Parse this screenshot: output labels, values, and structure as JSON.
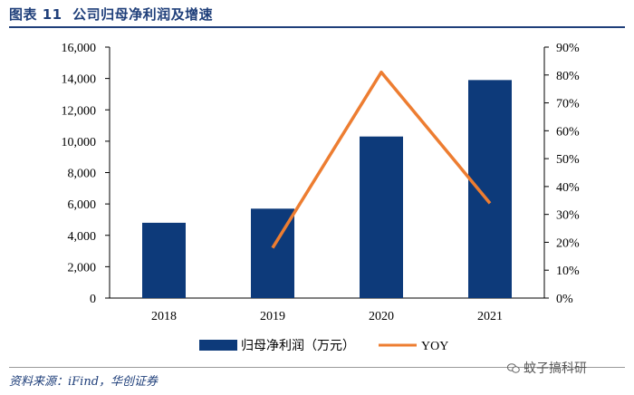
{
  "figure": {
    "label": "图表 11",
    "caption": "公司归母净利润及增速"
  },
  "source": "资料来源：iFind，华创证券",
  "watermark": "蚊子搞科研",
  "chart_data": {
    "type": "bar",
    "categories": [
      "2018",
      "2019",
      "2020",
      "2021"
    ],
    "series": [
      {
        "name": "归母净利润（万元）",
        "kind": "bar",
        "axis": "left",
        "color": "#0d3a7a",
        "values": [
          4800,
          5700,
          10300,
          13900
        ]
      },
      {
        "name": "YOY",
        "kind": "line",
        "axis": "right",
        "color": "#ed7d31",
        "values": [
          null,
          18,
          81,
          34
        ]
      }
    ],
    "y_left": {
      "min": 0,
      "max": 16000,
      "step": 2000,
      "ticks": [
        "0",
        "2,000",
        "4,000",
        "6,000",
        "8,000",
        "10,000",
        "12,000",
        "14,000",
        "16,000"
      ]
    },
    "y_right": {
      "min": 0,
      "max": 90,
      "step": 10,
      "ticks": [
        "0%",
        "10%",
        "20%",
        "30%",
        "40%",
        "50%",
        "60%",
        "70%",
        "80%",
        "90%"
      ]
    },
    "grid": false,
    "legend": "bottom-center",
    "legend_labels": [
      "归母净利润（万元）",
      "YOY"
    ]
  }
}
